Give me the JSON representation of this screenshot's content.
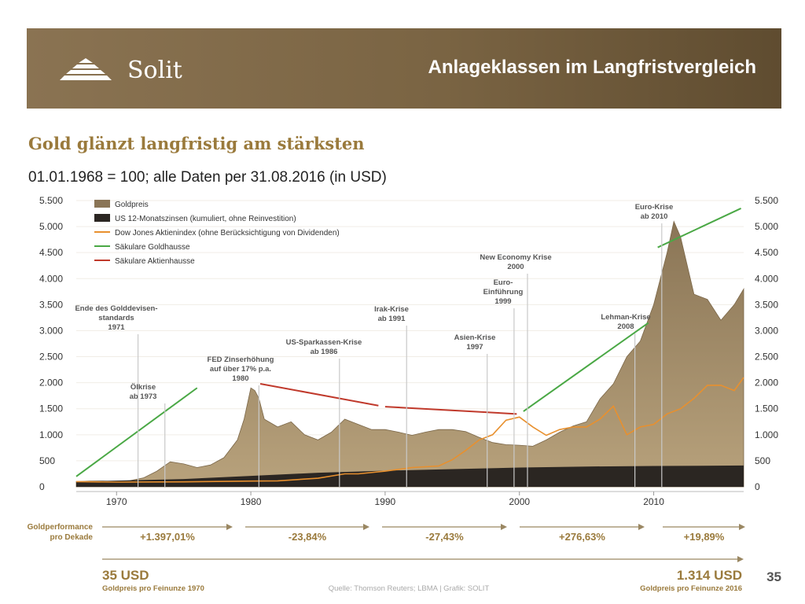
{
  "header": {
    "logo_text": "Solit",
    "title": "Anlageklassen im Langfristvergleich"
  },
  "subtitle": "Gold glänzt langfristig am stärksten",
  "basis_note": "01.01.1968 = 100; alle Daten per 31.08.2016 (in USD)",
  "page_number": "35",
  "colors": {
    "gold_fill": "#8a7556",
    "gold_top": "#b8a27c",
    "rates": "#2b2622",
    "dow": "#e8902e",
    "gold_trend": "#4aa845",
    "equity_trend": "#c0392b",
    "header": "#7a6443",
    "accent_text": "#9a7a3c"
  },
  "chart_data": {
    "type": "area",
    "title": "",
    "xlim": [
      1967,
      2016.7
    ],
    "ylim": [
      0,
      5500
    ],
    "x_ticks": [
      1970,
      1980,
      1990,
      2000,
      2010
    ],
    "y_ticks": [
      0,
      500,
      1000,
      1500,
      2000,
      2500,
      3000,
      3500,
      4000,
      4500,
      5000,
      5500
    ],
    "y_tick_labels": [
      "0",
      "500",
      "1.000",
      "1.500",
      "2.000",
      "2.500",
      "3.000",
      "3.500",
      "4.000",
      "4.500",
      "5.000",
      "5.500"
    ],
    "legend": [
      {
        "label": "Goldpreis",
        "kind": "area",
        "color": "#8a7556"
      },
      {
        "label": "US 12-Monatszinsen (kumuliert, ohne Reinvestition)",
        "kind": "area",
        "color": "#2b2622"
      },
      {
        "label": "Dow Jones Aktienindex (ohne Berücksichtigung von Dividenden)",
        "kind": "line",
        "color": "#e8902e"
      },
      {
        "label": "Säkulare Goldhausse",
        "kind": "line",
        "color": "#4aa845"
      },
      {
        "label": "Säkulare Aktienhausse",
        "kind": "line",
        "color": "#c0392b"
      }
    ],
    "series": [
      {
        "name": "Goldpreis",
        "x": [
          1967,
          1968,
          1969,
          1970,
          1971,
          1972,
          1973,
          1974,
          1975,
          1976,
          1977,
          1978,
          1979,
          1979.5,
          1980,
          1980.3,
          1980.6,
          1981,
          1982,
          1983,
          1984,
          1985,
          1986,
          1987,
          1988,
          1989,
          1990,
          1991,
          1992,
          1993,
          1994,
          1995,
          1996,
          1997,
          1998,
          1999,
          2000,
          2001,
          2002,
          2003,
          2004,
          2005,
          2006,
          2007,
          2008,
          2009,
          2010,
          2011,
          2011.5,
          2012,
          2013,
          2014,
          2015,
          2016,
          2016.7
        ],
        "values": [
          100,
          110,
          110,
          100,
          120,
          170,
          300,
          480,
          440,
          370,
          420,
          560,
          900,
          1300,
          1900,
          1850,
          1700,
          1300,
          1150,
          1250,
          1000,
          900,
          1050,
          1300,
          1200,
          1100,
          1100,
          1050,
          990,
          1050,
          1100,
          1100,
          1060,
          950,
          850,
          810,
          800,
          780,
          900,
          1050,
          1170,
          1250,
          1690,
          1980,
          2500,
          2800,
          3500,
          4500,
          5100,
          4800,
          3700,
          3600,
          3200,
          3500,
          3800
        ]
      },
      {
        "name": "US 12-Monatszinsen (kumuliert, ohne Reinvestition)",
        "x": [
          1967,
          1970,
          1975,
          1980,
          1985,
          1990,
          1995,
          2000,
          2005,
          2010,
          2016.7
        ],
        "values": [
          100,
          120,
          150,
          210,
          270,
          310,
          340,
          370,
          390,
          400,
          410
        ]
      },
      {
        "name": "Dow Jones Aktienindex (ohne Berücksichtigung von Dividenden)",
        "x": [
          1967,
          1970,
          1975,
          1980,
          1982,
          1985,
          1987,
          1988,
          1990,
          1992,
          1994,
          1995,
          1996,
          1997,
          1998,
          1999,
          2000,
          2001,
          2002,
          2003,
          2004,
          2005,
          2006,
          2007,
          2008,
          2009,
          2010,
          2011,
          2012,
          2013,
          2014,
          2015,
          2016,
          2016.7
        ],
        "values": [
          100,
          90,
          95,
          110,
          115,
          165,
          250,
          250,
          300,
          370,
          400,
          520,
          700,
          900,
          1000,
          1280,
          1340,
          1150,
          990,
          1100,
          1150,
          1150,
          1300,
          1550,
          1000,
          1150,
          1200,
          1400,
          1500,
          1700,
          1950,
          1950,
          1850,
          2100
        ]
      },
      {
        "name": "Säkulare Goldhausse",
        "segments": [
          {
            "x": [
              1967,
              1976
            ],
            "values": [
              200,
              1900
            ]
          },
          {
            "x": [
              2000.3,
              2009.6
            ],
            "values": [
              1450,
              3150
            ]
          },
          {
            "x": [
              2010.3,
              2016.5
            ],
            "values": [
              4600,
              5350
            ]
          }
        ]
      },
      {
        "name": "Säkulare Aktienhausse",
        "segments": [
          {
            "x": [
              1980.7,
              1989.5
            ],
            "values": [
              1980,
              1560
            ]
          },
          {
            "x": [
              1990,
              1999.8
            ],
            "values": [
              1540,
              1400
            ]
          }
        ]
      }
    ],
    "events": [
      {
        "year": 1971,
        "label_lines": [
          "Ende des Golddevisen-",
          "standards",
          "1971"
        ]
      },
      {
        "year": 1973,
        "label_lines": [
          "Ölkrise",
          "ab 1973"
        ]
      },
      {
        "year": 1980,
        "label_lines": [
          "FED Zinserhöhung",
          "auf über 17% p.a.",
          "1980"
        ]
      },
      {
        "year": 1986,
        "label_lines": [
          "US-Sparkassen-Krise",
          "ab 1986"
        ]
      },
      {
        "year": 1991,
        "label_lines": [
          "Irak-Krise",
          "ab 1991"
        ]
      },
      {
        "year": 1997,
        "label_lines": [
          "Asien-Krise",
          "1997"
        ]
      },
      {
        "year": 1999,
        "label_lines": [
          "Euro-",
          "Einführung",
          "1999"
        ]
      },
      {
        "year": 2000,
        "label_lines": [
          "New Economy Krise",
          "2000"
        ]
      },
      {
        "year": 2008,
        "label_lines": [
          "Lehman-Krise",
          "2008"
        ]
      },
      {
        "year": 2010,
        "label_lines": [
          "Euro-Krise",
          "ab 2010"
        ]
      }
    ],
    "decade_performance": {
      "label_lines": [
        "Goldperformance",
        "pro Dekade"
      ],
      "values": [
        "+1.397,01%",
        "-23,84%",
        "-27,43%",
        "+276,63%",
        "+19,89%"
      ]
    },
    "price_1970": {
      "value": "35 USD",
      "label": "Goldpreis pro Feinunze 1970"
    },
    "price_2016": {
      "value": "1.314 USD",
      "label": "Goldpreis pro Feinunze 2016"
    },
    "source": "Quelle: Thomson Reuters; LBMA | Grafik: SOLIT"
  }
}
